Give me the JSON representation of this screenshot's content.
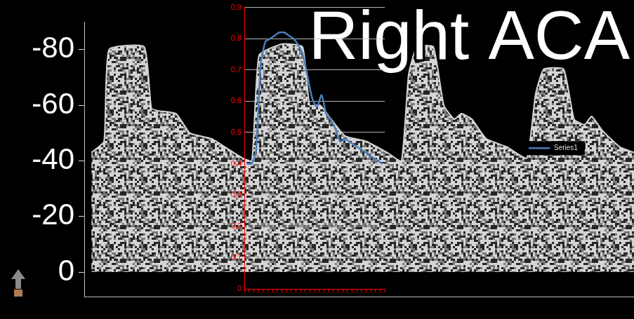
{
  "chart_data": [
    {
      "type": "area",
      "title": "Right ACA",
      "x": [
        1.3,
        3.6,
        4.5,
        10.9,
        12.2,
        13.5,
        16.7,
        19.2,
        23.1,
        25.6,
        28.8,
        30.5,
        31.8,
        35.9,
        39.7,
        41.0,
        42.9,
        44.9,
        47.4,
        51.3,
        55.1,
        57.7,
        59.0,
        60.5,
        63.5,
        65.4,
        67.3,
        68.6,
        70.5,
        73.1,
        76.9,
        80.5,
        82.1,
        83.6,
        87.2,
        89.1,
        91.0,
        92.3,
        94.2,
        97.4,
        100
      ],
      "values": [
        -43,
        -47,
        -80,
        -81,
        -59,
        -58,
        -57,
        -50,
        -48,
        -45,
        -41,
        -40,
        -78,
        -82,
        -81,
        -60,
        -60,
        -55,
        -49,
        -47,
        -43,
        -40,
        -71,
        -81,
        -81,
        -60,
        -55,
        -57,
        -55,
        -48,
        -45,
        -41,
        -64,
        -73,
        -73,
        -55,
        -53,
        -56,
        -51,
        -45,
        -43
      ],
      "color": "#d4d4d4",
      "xlim": [
        0,
        100
      ],
      "ylim": [
        9,
        -90
      ],
      "yticks": [
        -80,
        -60,
        -40,
        -20,
        0
      ],
      "tick_labels": "y",
      "grid": false
    },
    {
      "type": "line",
      "categories": [
        null,
        null,
        null,
        null,
        null,
        null,
        null,
        null,
        null,
        null,
        null,
        null,
        null,
        null,
        null,
        null,
        null,
        null,
        null,
        null,
        null,
        null,
        null,
        null,
        null,
        null,
        null,
        null,
        null,
        null
      ],
      "series": [
        {
          "name": "Series1",
          "color": "#4a7ebb",
          "values": [
            0.4,
            0.4,
            0.44,
            0.72,
            0.79,
            0.8,
            0.81,
            0.82,
            0.82,
            0.81,
            0.8,
            0.78,
            0.75,
            0.68,
            0.61,
            0.58,
            0.62,
            0.56,
            0.54,
            0.51,
            0.47,
            0.48,
            0.47,
            0.46,
            0.45,
            0.44,
            0.43,
            0.42,
            0.41,
            0.4
          ]
        }
      ],
      "ylim": [
        0,
        0.9
      ],
      "yticks": [
        0,
        0.1,
        0.2,
        0.3,
        0.4,
        0.5,
        0.6,
        0.7,
        0.8,
        0.9
      ],
      "grid": true,
      "legend": "right",
      "tick_labels": "y"
    }
  ]
}
